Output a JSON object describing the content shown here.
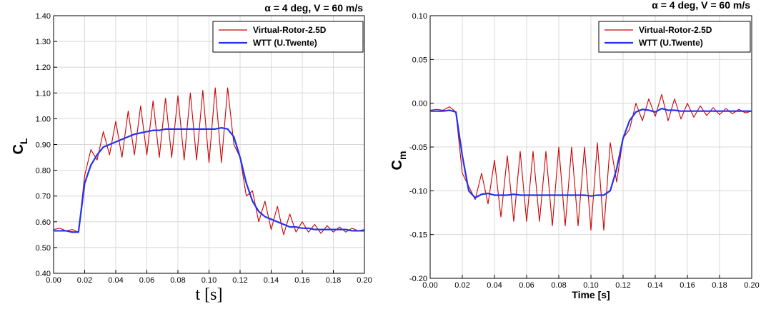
{
  "chart_data": [
    {
      "type": "line",
      "title": "α =  4 deg,  V = 60 m/s",
      "ylabel": "C",
      "ylabel_sub": "L",
      "xlabel": "t [s]",
      "x": [
        0,
        0.004,
        0.008,
        0.012,
        0.016,
        0.02,
        0.024,
        0.028,
        0.032,
        0.036,
        0.04,
        0.044,
        0.048,
        0.052,
        0.056,
        0.06,
        0.064,
        0.068,
        0.072,
        0.076,
        0.08,
        0.084,
        0.088,
        0.092,
        0.096,
        0.1,
        0.104,
        0.108,
        0.112,
        0.116,
        0.12,
        0.124,
        0.128,
        0.132,
        0.136,
        0.14,
        0.144,
        0.148,
        0.152,
        0.156,
        0.16,
        0.164,
        0.168,
        0.172,
        0.176,
        0.18,
        0.184,
        0.188,
        0.192,
        0.196,
        0.2
      ],
      "series": [
        {
          "name": "Virtual-Rotor-2.5D",
          "color": "#cc0000",
          "values": [
            0.57,
            0.575,
            0.565,
            0.57,
            0.56,
            0.78,
            0.88,
            0.84,
            0.95,
            0.86,
            0.99,
            0.85,
            1.03,
            0.86,
            1.05,
            0.86,
            1.07,
            0.85,
            1.08,
            0.85,
            1.09,
            0.84,
            1.1,
            0.84,
            1.11,
            0.83,
            1.12,
            0.83,
            1.12,
            0.9,
            0.85,
            0.7,
            0.72,
            0.6,
            0.68,
            0.57,
            0.66,
            0.55,
            0.63,
            0.56,
            0.6,
            0.56,
            0.59,
            0.555,
            0.585,
            0.56,
            0.58,
            0.56,
            0.575,
            0.565,
            0.57
          ]
        },
        {
          "name": "WTT (U.Twente)",
          "color": "#2233ee",
          "values": [
            0.565,
            0.565,
            0.565,
            0.56,
            0.56,
            0.75,
            0.82,
            0.86,
            0.89,
            0.9,
            0.91,
            0.92,
            0.93,
            0.94,
            0.945,
            0.95,
            0.955,
            0.955,
            0.96,
            0.96,
            0.96,
            0.96,
            0.96,
            0.96,
            0.96,
            0.96,
            0.96,
            0.965,
            0.96,
            0.93,
            0.85,
            0.75,
            0.68,
            0.64,
            0.62,
            0.61,
            0.6,
            0.59,
            0.58,
            0.58,
            0.575,
            0.575,
            0.57,
            0.57,
            0.57,
            0.57,
            0.57,
            0.57,
            0.565,
            0.565,
            0.565
          ]
        }
      ],
      "xlim": [
        0,
        0.2
      ],
      "ylim": [
        0.4,
        1.4
      ],
      "xticks": [
        {
          "value": 0,
          "label": "0.00"
        },
        0.02,
        0.04,
        0.06,
        0.08,
        {
          "value": 0.1,
          "label": "0.10"
        },
        0.12,
        0.14,
        0.16,
        0.18,
        {
          "value": 0.2,
          "label": "0.20"
        }
      ],
      "yticks": [
        {
          "value": 0.4,
          "label": "0.40"
        },
        {
          "value": 0.5,
          "label": "0.50"
        },
        {
          "value": 0.6,
          "label": "0.60"
        },
        {
          "value": 0.7,
          "label": "0.70"
        },
        {
          "value": 0.8,
          "label": "0.80"
        },
        {
          "value": 0.9,
          "label": "0.90"
        },
        {
          "value": 1.0,
          "label": "1.00"
        },
        {
          "value": 1.1,
          "label": "1.10"
        },
        {
          "value": 1.2,
          "label": "1.20"
        },
        {
          "value": 1.3,
          "label": "1.30"
        },
        {
          "value": 1.4,
          "label": "1.40"
        }
      ],
      "grid": true,
      "legend": "upper-right"
    },
    {
      "type": "line",
      "title": "α =  4 deg,  V = 60 m/s",
      "ylabel": "C",
      "ylabel_sub": "m",
      "xlabel": "Time [s]",
      "x": [
        0,
        0.004,
        0.008,
        0.012,
        0.016,
        0.02,
        0.024,
        0.028,
        0.032,
        0.036,
        0.04,
        0.044,
        0.048,
        0.052,
        0.056,
        0.06,
        0.064,
        0.068,
        0.072,
        0.076,
        0.08,
        0.084,
        0.088,
        0.092,
        0.096,
        0.1,
        0.104,
        0.108,
        0.112,
        0.116,
        0.12,
        0.124,
        0.128,
        0.132,
        0.136,
        0.14,
        0.144,
        0.148,
        0.152,
        0.156,
        0.16,
        0.164,
        0.168,
        0.172,
        0.176,
        0.18,
        0.184,
        0.188,
        0.192,
        0.196,
        0.2
      ],
      "series": [
        {
          "name": "Virtual-Rotor-2.5D",
          "color": "#cc0000",
          "values": [
            -0.008,
            -0.007,
            -0.008,
            -0.004,
            -0.01,
            -0.08,
            -0.095,
            -0.11,
            -0.08,
            -0.115,
            -0.065,
            -0.13,
            -0.06,
            -0.135,
            -0.055,
            -0.135,
            -0.055,
            -0.135,
            -0.055,
            -0.14,
            -0.05,
            -0.14,
            -0.05,
            -0.14,
            -0.05,
            -0.145,
            -0.045,
            -0.145,
            -0.045,
            -0.09,
            -0.04,
            -0.03,
            0.0,
            -0.02,
            0.005,
            -0.015,
            0.01,
            -0.02,
            0.005,
            -0.018,
            0.0,
            -0.016,
            -0.003,
            -0.014,
            -0.005,
            -0.013,
            -0.006,
            -0.012,
            -0.007,
            -0.011,
            -0.009
          ]
        },
        {
          "name": "WTT (U.Twente)",
          "color": "#2233ee",
          "values": [
            -0.009,
            -0.009,
            -0.009,
            -0.008,
            -0.01,
            -0.06,
            -0.1,
            -0.108,
            -0.104,
            -0.103,
            -0.105,
            -0.105,
            -0.105,
            -0.104,
            -0.105,
            -0.105,
            -0.105,
            -0.105,
            -0.105,
            -0.105,
            -0.105,
            -0.105,
            -0.105,
            -0.105,
            -0.105,
            -0.106,
            -0.105,
            -0.105,
            -0.1,
            -0.075,
            -0.04,
            -0.02,
            -0.01,
            -0.007,
            -0.008,
            -0.01,
            -0.006,
            -0.008,
            -0.008,
            -0.009,
            -0.009,
            -0.009,
            -0.009,
            -0.009,
            -0.009,
            -0.009,
            -0.009,
            -0.009,
            -0.009,
            -0.009,
            -0.009
          ]
        }
      ],
      "xlim": [
        0,
        0.2
      ],
      "ylim": [
        -0.2,
        0.1
      ],
      "xticks": [
        {
          "value": 0,
          "label": "0.00"
        },
        0.02,
        0.04,
        0.06,
        0.08,
        {
          "value": 0.1,
          "label": "0.10"
        },
        0.12,
        0.14,
        0.16,
        0.18,
        {
          "value": 0.2,
          "label": "0.20"
        }
      ],
      "yticks": [
        {
          "value": -0.2,
          "label": "-0.20"
        },
        -0.15,
        {
          "value": -0.1,
          "label": "-0.10"
        },
        -0.05,
        {
          "value": 0,
          "label": "0.00"
        },
        0.05,
        {
          "value": 0.1,
          "label": "0.10"
        }
      ],
      "grid": true,
      "legend": "upper-right"
    }
  ]
}
